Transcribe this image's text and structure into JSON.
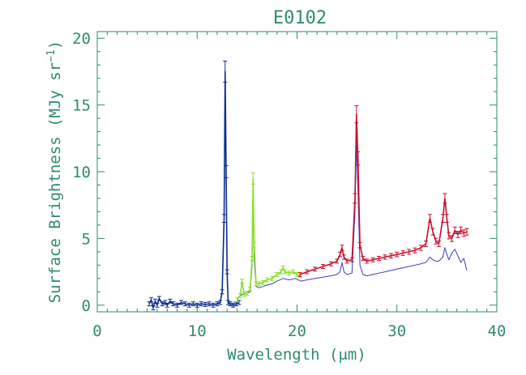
{
  "chart_data": {
    "type": "line",
    "title": "E0102",
    "xlabel": "Wavelength (μm)",
    "ylabel_main": "Surface Brightness (MJy sr",
    "ylabel_sup": "−1",
    "ylabel_close": ")",
    "xlim": [
      0,
      40
    ],
    "ylim": [
      -0.5,
      20.5
    ],
    "xticks": [
      0,
      10,
      20,
      30,
      40
    ],
    "yticks": [
      0,
      5,
      10,
      15,
      20
    ],
    "xtick_labels": [
      "0",
      "10",
      "20",
      "30",
      "40"
    ],
    "ytick_labels": [
      "0",
      "5",
      "10",
      "15",
      "20"
    ],
    "grid": false,
    "axis_color": "#2e8b72",
    "series": [
      {
        "color": "#0a2c8c",
        "x": [
          5.2,
          5.4,
          5.6,
          5.8,
          6.0,
          6.2,
          6.5,
          6.8,
          7.0,
          7.3,
          7.6,
          8.0,
          8.4,
          8.8,
          9.2,
          9.6,
          10.0,
          10.4,
          10.8,
          11.2,
          11.6,
          12.0,
          12.3,
          12.5,
          12.7,
          12.8,
          12.9,
          13.0,
          13.1,
          13.3,
          13.6,
          13.9,
          14.2
        ],
        "y": [
          0.1,
          0.4,
          -0.2,
          0.3,
          0.0,
          0.5,
          0.1,
          0.2,
          0.0,
          0.3,
          0.1,
          0.0,
          0.2,
          0.1,
          0.0,
          0.1,
          0.0,
          0.1,
          0.05,
          0.1,
          0.0,
          0.1,
          0.2,
          1.0,
          6.5,
          17.5,
          10.0,
          2.5,
          0.2,
          0.1,
          0.0,
          0.1,
          0.2
        ]
      },
      {
        "color": "#88e02a",
        "x": [
          14.0,
          14.3,
          14.5,
          14.7,
          15.0,
          15.3,
          15.5,
          15.6,
          15.7,
          15.9,
          16.2,
          16.6,
          17.0,
          17.5,
          18.0,
          18.4,
          18.6,
          18.8,
          19.2,
          19.6,
          20.0,
          20.3
        ],
        "y": [
          0.4,
          0.7,
          1.8,
          0.8,
          0.9,
          1.2,
          3.5,
          9.5,
          4.5,
          1.6,
          1.6,
          1.7,
          1.9,
          2.0,
          2.3,
          2.5,
          2.8,
          2.5,
          2.4,
          2.5,
          2.3,
          2.2
        ]
      },
      {
        "color": "#c8102e",
        "x": [
          20.3,
          21.0,
          21.8,
          22.6,
          23.4,
          24.0,
          24.3,
          24.5,
          24.7,
          25.0,
          25.5,
          25.8,
          25.95,
          26.1,
          26.3,
          26.6,
          27.0,
          27.6,
          28.2,
          28.8,
          29.4,
          30.0,
          30.6,
          31.2,
          31.8,
          32.4,
          32.9,
          33.3,
          33.6,
          33.9,
          34.2,
          34.6,
          34.8,
          35.0,
          35.2,
          35.5,
          35.8,
          36.1,
          36.4,
          36.7,
          37.0
        ],
        "y": [
          2.3,
          2.5,
          2.7,
          2.9,
          3.1,
          3.3,
          3.8,
          4.3,
          3.6,
          3.3,
          3.4,
          8.0,
          14.3,
          11.0,
          4.5,
          3.5,
          3.3,
          3.4,
          3.5,
          3.6,
          3.7,
          3.8,
          3.9,
          4.0,
          4.1,
          4.3,
          4.6,
          6.5,
          5.5,
          4.8,
          4.6,
          6.5,
          8.0,
          6.5,
          5.2,
          5.0,
          5.6,
          5.3,
          5.6,
          5.4,
          5.5
        ]
      },
      {
        "color": "#3c3cc8",
        "x": [
          14.0,
          14.5,
          15.0,
          15.3,
          15.5,
          15.6,
          15.7,
          15.9,
          16.2,
          16.6,
          17.0,
          17.5,
          18.0,
          18.6,
          19.2,
          19.8,
          20.4,
          21.0,
          21.8,
          22.6,
          23.4,
          24.0,
          24.3,
          24.5,
          24.7,
          25.0,
          25.5,
          25.8,
          25.95,
          26.1,
          26.3,
          26.6,
          27.0,
          27.6,
          28.2,
          28.8,
          29.4,
          30.0,
          30.6,
          31.2,
          31.8,
          32.4,
          32.9,
          33.3,
          33.6,
          33.9,
          34.2,
          34.6,
          34.8,
          35.0,
          35.2,
          35.5,
          35.8,
          36.1,
          36.4,
          36.7,
          37.0
        ],
        "y": [
          0.5,
          0.8,
          0.9,
          1.0,
          3.0,
          7.8,
          3.5,
          1.4,
          1.3,
          1.4,
          1.5,
          1.6,
          1.8,
          2.0,
          1.9,
          2.0,
          1.8,
          1.9,
          2.0,
          2.1,
          2.2,
          2.3,
          2.5,
          3.2,
          2.5,
          2.3,
          2.4,
          7.0,
          12.3,
          8.5,
          3.0,
          2.3,
          2.2,
          2.3,
          2.4,
          2.5,
          2.6,
          2.7,
          2.8,
          2.9,
          3.0,
          3.1,
          3.2,
          3.6,
          3.4,
          3.3,
          3.3,
          3.6,
          4.3,
          3.8,
          3.4,
          3.9,
          4.2,
          3.7,
          3.2,
          3.5,
          2.6
        ]
      }
    ]
  }
}
